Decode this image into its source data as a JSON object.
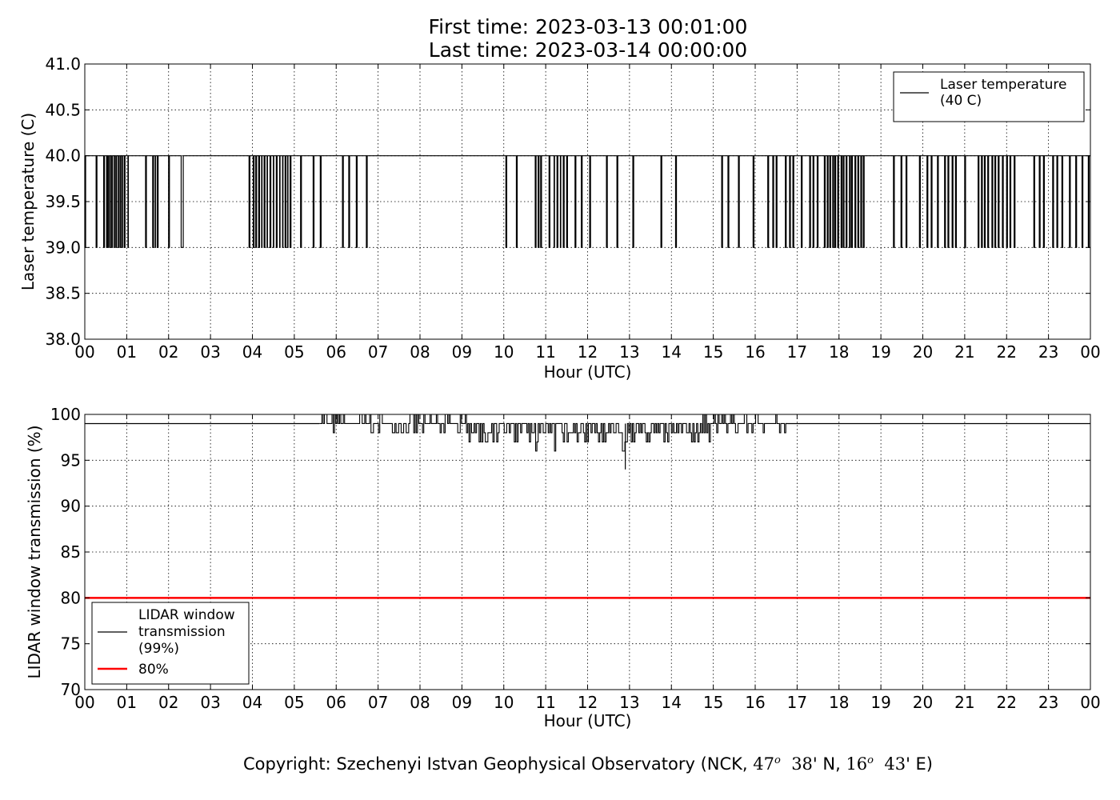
{
  "figure": {
    "title_line1": "First time: 2023-03-13 00:01:00",
    "title_line2": "Last time: 2023-03-14 00:00:00",
    "copyright": {
      "prefix": "Copyright: Szechenyi Istvan Geophysical Observatory (NCK, ",
      "lat_deg": "47",
      "lat_min": "38",
      "lat_suffix": "' N, ",
      "lon_deg": "16",
      "lon_min": "43",
      "lon_suffix": "' E)",
      "degree_mark": "o"
    }
  },
  "chart_data": [
    {
      "type": "line",
      "xlabel": "Hour (UTC)",
      "ylabel": "Laser temperature (C)",
      "x_tick_labels": [
        "00",
        "01",
        "02",
        "03",
        "04",
        "05",
        "06",
        "07",
        "08",
        "09",
        "10",
        "11",
        "12",
        "13",
        "14",
        "15",
        "16",
        "17",
        "18",
        "19",
        "20",
        "21",
        "22",
        "23",
        "00"
      ],
      "xlim": [
        0,
        24
      ],
      "ylim": [
        38.0,
        41.0
      ],
      "y_ticks": [
        "38.0",
        "38.5",
        "39.0",
        "39.5",
        "40.0",
        "40.5",
        "41.0"
      ],
      "grid": true,
      "legend_position": "top-right",
      "series": [
        {
          "name": "Laser temperature\n(40 C)",
          "legend_lines": [
            "Laser temperature",
            "(40 C)"
          ],
          "color": "#000000",
          "baseline": 40.0,
          "drop_value": 39.0,
          "dips": [
            [
              0.0,
              0.02
            ],
            [
              0.27,
              0.29
            ],
            [
              0.45,
              0.47
            ],
            [
              0.52,
              0.53
            ],
            [
              0.55,
              0.57
            ],
            [
              0.6,
              0.61
            ],
            [
              0.64,
              0.66
            ],
            [
              0.7,
              0.71
            ],
            [
              0.74,
              0.76
            ],
            [
              0.8,
              0.81
            ],
            [
              0.84,
              0.86
            ],
            [
              0.89,
              0.9
            ],
            [
              0.94,
              0.96
            ],
            [
              1.03,
              1.04
            ],
            [
              1.45,
              1.47
            ],
            [
              1.62,
              1.64
            ],
            [
              1.68,
              1.69
            ],
            [
              1.73,
              1.75
            ],
            [
              2.0,
              2.02
            ],
            [
              2.3,
              2.35
            ],
            [
              3.92,
              3.94
            ],
            [
              4.02,
              4.04
            ],
            [
              4.08,
              4.1
            ],
            [
              4.15,
              4.17
            ],
            [
              4.22,
              4.23
            ],
            [
              4.28,
              4.3
            ],
            [
              4.35,
              4.36
            ],
            [
              4.42,
              4.44
            ],
            [
              4.5,
              4.51
            ],
            [
              4.57,
              4.59
            ],
            [
              4.65,
              4.66
            ],
            [
              4.72,
              4.73
            ],
            [
              4.78,
              4.8
            ],
            [
              4.84,
              4.85
            ],
            [
              4.9,
              4.92
            ],
            [
              5.15,
              5.17
            ],
            [
              5.45,
              5.47
            ],
            [
              5.62,
              5.64
            ],
            [
              6.15,
              6.17
            ],
            [
              6.3,
              6.32
            ],
            [
              6.48,
              6.5
            ],
            [
              6.72,
              6.74
            ],
            [
              10.05,
              10.07
            ],
            [
              10.3,
              10.32
            ],
            [
              10.75,
              10.77
            ],
            [
              10.82,
              10.84
            ],
            [
              10.88,
              10.9
            ],
            [
              11.08,
              11.1
            ],
            [
              11.2,
              11.21
            ],
            [
              11.27,
              11.29
            ],
            [
              11.35,
              11.36
            ],
            [
              11.42,
              11.44
            ],
            [
              11.5,
              11.52
            ],
            [
              11.7,
              11.72
            ],
            [
              11.85,
              11.87
            ],
            [
              12.05,
              12.07
            ],
            [
              12.45,
              12.47
            ],
            [
              12.7,
              12.72
            ],
            [
              13.08,
              13.1
            ],
            [
              13.75,
              13.77
            ],
            [
              14.1,
              14.12
            ],
            [
              15.2,
              15.22
            ],
            [
              15.35,
              15.37
            ],
            [
              15.6,
              15.62
            ],
            [
              15.95,
              15.97
            ],
            [
              16.3,
              16.32
            ],
            [
              16.42,
              16.44
            ],
            [
              16.5,
              16.52
            ],
            [
              16.72,
              16.74
            ],
            [
              16.82,
              16.84
            ],
            [
              16.9,
              16.92
            ],
            [
              17.1,
              17.12
            ],
            [
              17.3,
              17.32
            ],
            [
              17.38,
              17.4
            ],
            [
              17.48,
              17.5
            ],
            [
              17.65,
              17.67
            ],
            [
              17.72,
              17.74
            ],
            [
              17.78,
              17.8
            ],
            [
              17.85,
              17.87
            ],
            [
              17.9,
              17.92
            ],
            [
              17.97,
              17.99
            ],
            [
              18.05,
              18.07
            ],
            [
              18.1,
              18.12
            ],
            [
              18.17,
              18.19
            ],
            [
              18.25,
              18.27
            ],
            [
              18.3,
              18.32
            ],
            [
              18.38,
              18.4
            ],
            [
              18.45,
              18.47
            ],
            [
              18.52,
              18.54
            ],
            [
              18.58,
              18.6
            ],
            [
              19.3,
              19.32
            ],
            [
              19.48,
              19.5
            ],
            [
              19.6,
              19.62
            ],
            [
              19.92,
              19.94
            ],
            [
              20.1,
              20.12
            ],
            [
              20.2,
              20.22
            ],
            [
              20.35,
              20.37
            ],
            [
              20.52,
              20.54
            ],
            [
              20.6,
              20.62
            ],
            [
              20.7,
              20.72
            ],
            [
              20.78,
              20.8
            ],
            [
              21.0,
              21.02
            ],
            [
              21.32,
              21.34
            ],
            [
              21.4,
              21.42
            ],
            [
              21.47,
              21.49
            ],
            [
              21.55,
              21.57
            ],
            [
              21.65,
              21.67
            ],
            [
              21.72,
              21.74
            ],
            [
              21.8,
              21.82
            ],
            [
              21.9,
              21.92
            ],
            [
              22.0,
              22.02
            ],
            [
              22.08,
              22.1
            ],
            [
              22.18,
              22.2
            ],
            [
              22.65,
              22.67
            ],
            [
              22.78,
              22.8
            ],
            [
              22.88,
              22.9
            ],
            [
              23.1,
              23.12
            ],
            [
              23.2,
              23.22
            ],
            [
              23.32,
              23.34
            ],
            [
              23.5,
              23.52
            ],
            [
              23.65,
              23.67
            ],
            [
              23.8,
              23.82
            ],
            [
              23.95,
              23.97
            ]
          ]
        }
      ]
    },
    {
      "type": "line",
      "xlabel": "Hour (UTC)",
      "ylabel": "LIDAR window transmission (%)",
      "x_tick_labels": [
        "00",
        "01",
        "02",
        "03",
        "04",
        "05",
        "06",
        "07",
        "08",
        "09",
        "10",
        "11",
        "12",
        "13",
        "14",
        "15",
        "16",
        "17",
        "18",
        "19",
        "20",
        "21",
        "22",
        "23",
        "00"
      ],
      "xlim": [
        0,
        24
      ],
      "ylim": [
        70,
        100
      ],
      "y_ticks": [
        "70",
        "75",
        "80",
        "85",
        "90",
        "95",
        "100"
      ],
      "grid": true,
      "legend_position": "bottom-left",
      "series": [
        {
          "name": "LIDAR window\ntransmission\n(99%)",
          "legend_lines": [
            "LIDAR window",
            "transmission",
            "(99%)"
          ],
          "color": "#000000",
          "baseline": 99,
          "active_x": [
            5.6,
            16.75
          ],
          "x": [
            5.6,
            6.0,
            6.5,
            7.0,
            7.5,
            8.0,
            8.5,
            9.0,
            9.3,
            9.6,
            10.0,
            10.3,
            10.6,
            11.0,
            11.5,
            12.0,
            12.4,
            12.7,
            12.9,
            13.2,
            13.6,
            14.0,
            14.5,
            14.8,
            15.2,
            15.6,
            16.0,
            16.4,
            16.75
          ],
          "y_low": [
            99,
            98,
            98,
            98,
            98,
            98,
            98,
            98,
            97,
            96,
            96,
            96,
            96,
            96,
            97,
            97,
            96,
            96,
            94,
            97,
            97,
            97,
            97,
            97,
            98,
            98,
            98,
            98,
            98
          ],
          "y_high": [
            100,
            100,
            100,
            100,
            100,
            100,
            100,
            100,
            99,
            99,
            99,
            99,
            99,
            99,
            99,
            99,
            99,
            99,
            99,
            99,
            99,
            99,
            99,
            100,
            100,
            100,
            100,
            100,
            99
          ]
        },
        {
          "name": "80%",
          "legend_lines": [
            "80%"
          ],
          "color": "#ff0000",
          "constant": 80
        }
      ]
    }
  ]
}
